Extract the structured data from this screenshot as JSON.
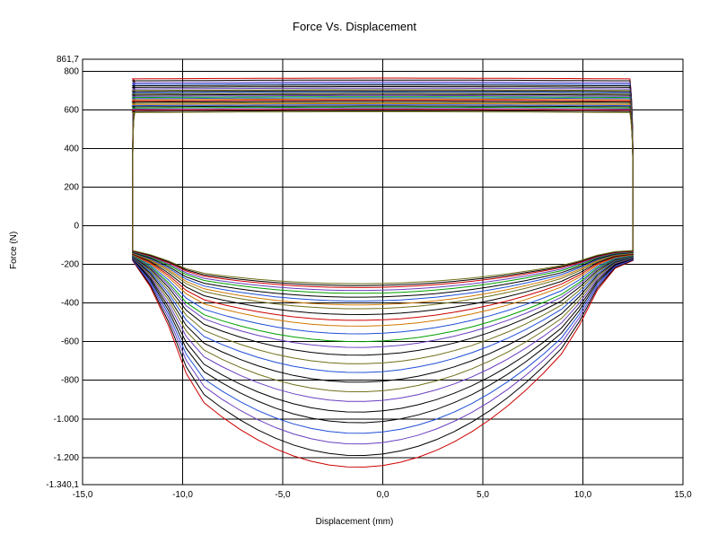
{
  "chart": {
    "type": "line",
    "title": "Force Vs. Displacement",
    "title_fontsize": 13,
    "xlabel": "Displacement (mm)",
    "ylabel": "Force (N)",
    "label_fontsize": 10,
    "background_color": "#ffffff",
    "grid_color": "#000000",
    "axis_color": "#000000",
    "tick_fontsize": 10,
    "number_format_decimal": ",",
    "plot_area_border": true,
    "xlim": [
      -15.0,
      15.0
    ],
    "ylim": [
      -1340.1,
      861.7
    ],
    "xticks": [
      -15.0,
      -10.0,
      -5.0,
      0.0,
      5.0,
      10.0,
      15.0
    ],
    "yticks": [
      -1200,
      -1000,
      -800,
      -600,
      -400,
      -200,
      0,
      200,
      400,
      600,
      800
    ],
    "corner_labels": {
      "top_left": "861,7",
      "bottom_left": "-1.340,1"
    },
    "loops": [
      {
        "color": "#cc0000",
        "top_force": 760,
        "bottom_force": -1250,
        "bottom_shoulder": -180
      },
      {
        "color": "#000000",
        "top_force": 750,
        "bottom_force": -1190,
        "bottom_shoulder": -178
      },
      {
        "color": "#6a3fbf",
        "top_force": 740,
        "bottom_force": -1130,
        "bottom_shoulder": -176
      },
      {
        "color": "#1f4fd6",
        "top_force": 732,
        "bottom_force": -1075,
        "bottom_shoulder": -174
      },
      {
        "color": "#000000",
        "top_force": 724,
        "bottom_force": -1020,
        "bottom_shoulder": -172
      },
      {
        "color": "#000000",
        "top_force": 716,
        "bottom_force": -965,
        "bottom_shoulder": -170
      },
      {
        "color": "#6a3fbf",
        "top_force": 708,
        "bottom_force": -910,
        "bottom_shoulder": -168
      },
      {
        "color": "#6f6f1a",
        "top_force": 700,
        "bottom_force": -860,
        "bottom_shoulder": -166
      },
      {
        "color": "#000000",
        "top_force": 694,
        "bottom_force": -810,
        "bottom_shoulder": -164
      },
      {
        "color": "#1f4fd6",
        "top_force": 688,
        "bottom_force": -760,
        "bottom_shoulder": -162
      },
      {
        "color": "#6f6f1a",
        "top_force": 682,
        "bottom_force": -715,
        "bottom_shoulder": -160
      },
      {
        "color": "#000000",
        "top_force": 676,
        "bottom_force": -670,
        "bottom_shoulder": -158
      },
      {
        "color": "#6a3fbf",
        "top_force": 670,
        "bottom_force": -630,
        "bottom_shoulder": -156
      },
      {
        "color": "#00a000",
        "top_force": 664,
        "bottom_force": -600,
        "bottom_shoulder": -154
      },
      {
        "color": "#1f4fd6",
        "top_force": 658,
        "bottom_force": -560,
        "bottom_shoulder": -152
      },
      {
        "color": "#d07800",
        "top_force": 652,
        "bottom_force": -520,
        "bottom_shoulder": -150
      },
      {
        "color": "#cc0000",
        "top_force": 646,
        "bottom_force": -490,
        "bottom_shoulder": -148
      },
      {
        "color": "#000000",
        "top_force": 640,
        "bottom_force": -460,
        "bottom_shoulder": -146
      },
      {
        "color": "#6f6f1a",
        "top_force": 634,
        "bottom_force": -430,
        "bottom_shoulder": -144
      },
      {
        "color": "#d07800",
        "top_force": 628,
        "bottom_force": -410,
        "bottom_shoulder": -142
      },
      {
        "color": "#1f4fd6",
        "top_force": 622,
        "bottom_force": -390,
        "bottom_shoulder": -140
      },
      {
        "color": "#000000",
        "top_force": 616,
        "bottom_force": -370,
        "bottom_shoulder": -138
      },
      {
        "color": "#00a000",
        "top_force": 610,
        "bottom_force": -350,
        "bottom_shoulder": -136
      },
      {
        "color": "#6a3fbf",
        "top_force": 604,
        "bottom_force": -335,
        "bottom_shoulder": -134
      },
      {
        "color": "#cc0000",
        "top_force": 598,
        "bottom_force": -320,
        "bottom_shoulder": -132
      },
      {
        "color": "#000000",
        "top_force": 592,
        "bottom_force": -310,
        "bottom_shoulder": -130
      },
      {
        "color": "#6f6f1a",
        "top_force": 586,
        "bottom_force": -300,
        "bottom_shoulder": -128
      }
    ],
    "loop_xspan": {
      "min": -12.5,
      "max": 12.5
    },
    "line_width": 1,
    "corner_radius_x": 1.0
  }
}
